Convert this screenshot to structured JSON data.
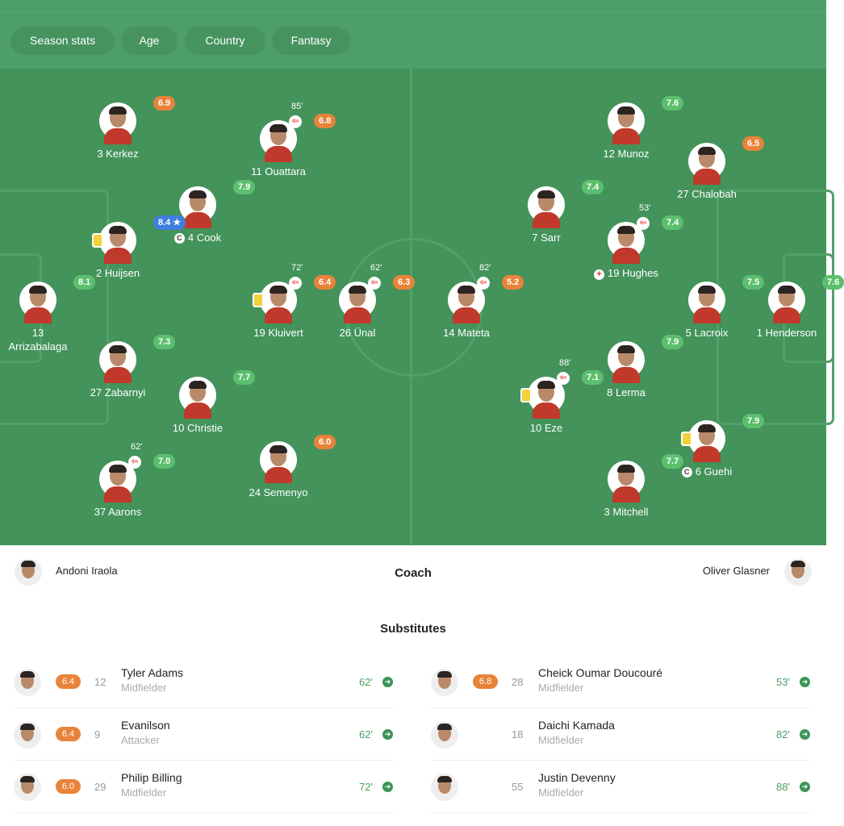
{
  "filters": [
    "Season stats",
    "Age",
    "Country",
    "Fantasy"
  ],
  "colors": {
    "orange": "#e8833a",
    "green": "#5cbf6e",
    "blue": "#3d7fe0"
  },
  "players": [
    {
      "name": "3 Kerkez",
      "rating": "6.9",
      "color": "orange"
    },
    {
      "name": "11 Ouattara",
      "rating": "6.8",
      "color": "orange",
      "sub": "85'"
    },
    {
      "name": "4 Cook",
      "rating": "7.9",
      "color": "green",
      "captain": true
    },
    {
      "name": "2 Huijsen",
      "rating": "8.4 ★",
      "color": "blue",
      "yellow": true
    },
    {
      "name": "13 Arrizabalaga",
      "rating": "8.1",
      "color": "green"
    },
    {
      "name": "19 Kluivert",
      "rating": "6.4",
      "color": "orange",
      "sub": "72'",
      "yellow": true
    },
    {
      "name": "26 Ünal",
      "rating": "6.3",
      "color": "orange",
      "sub": "62'"
    },
    {
      "name": "27 Zabarnyi",
      "rating": "7.3",
      "color": "green"
    },
    {
      "name": "10 Christie",
      "rating": "7.7",
      "color": "green"
    },
    {
      "name": "24 Semenyo",
      "rating": "6.0",
      "color": "orange"
    },
    {
      "name": "37 Aarons",
      "rating": "7.0",
      "color": "green",
      "sub": "62'"
    },
    {
      "name": "12 Munoz",
      "rating": "7.6",
      "color": "green"
    },
    {
      "name": "27 Chalobah",
      "rating": "6.5",
      "color": "orange"
    },
    {
      "name": "7 Sarr",
      "rating": "7.4",
      "color": "green"
    },
    {
      "name": "19 Hughes",
      "rating": "7.4",
      "color": "green",
      "sub": "53'",
      "injury": true
    },
    {
      "name": "14 Mateta",
      "rating": "5.2",
      "color": "orange",
      "sub": "82'"
    },
    {
      "name": "5 Lacroix",
      "rating": "7.5",
      "color": "green"
    },
    {
      "name": "1 Henderson",
      "rating": "7.6",
      "color": "green"
    },
    {
      "name": "8 Lerma",
      "rating": "7.9",
      "color": "green"
    },
    {
      "name": "10 Eze",
      "rating": "7.1",
      "color": "green",
      "sub": "88'",
      "yellow": true
    },
    {
      "name": "6 Guehi",
      "rating": "7.9",
      "color": "green",
      "yellow": true,
      "captain": true
    },
    {
      "name": "3 Mitchell",
      "rating": "7.7",
      "color": "green"
    }
  ],
  "coach": {
    "label": "Coach",
    "home": "Andoni Iraola",
    "away": "Oliver Glasner"
  },
  "substitutes_title": "Substitutes",
  "subs_home": [
    {
      "rating": "6.4",
      "number": "12",
      "name": "Tyler Adams",
      "position": "Midfielder",
      "minute": "62'"
    },
    {
      "rating": "6.4",
      "number": "9",
      "name": "Evanilson",
      "position": "Attacker",
      "minute": "62'"
    },
    {
      "rating": "6.0",
      "number": "29",
      "name": "Philip Billing",
      "position": "Midfielder",
      "minute": "72'"
    }
  ],
  "subs_away": [
    {
      "rating": "6.8",
      "number": "28",
      "name": "Cheick Oumar Doucouré",
      "position": "Midfielder",
      "minute": "53'"
    },
    {
      "rating": "",
      "number": "18",
      "name": "Daichi Kamada",
      "position": "Midfielder",
      "minute": "82'"
    },
    {
      "rating": "",
      "number": "55",
      "name": "Justin Devenny",
      "position": "Midfielder",
      "minute": "88'"
    }
  ]
}
